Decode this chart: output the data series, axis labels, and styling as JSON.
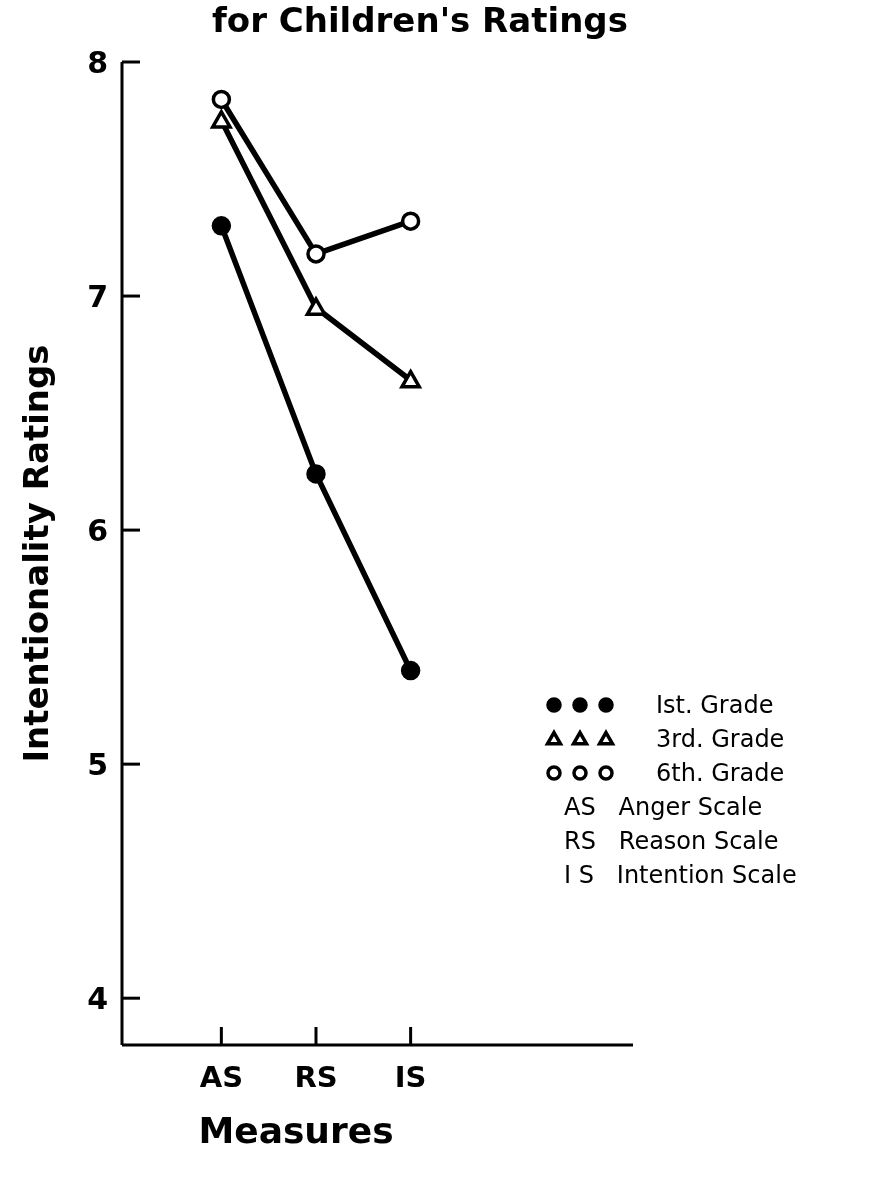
{
  "chart_data": {
    "type": "line",
    "title": "for Children's Ratings",
    "xlabel": "Measures",
    "ylabel": "Intentionality Ratings",
    "categories": [
      "AS",
      "RS",
      "IS"
    ],
    "series": [
      {
        "name": "Ist.  Grade",
        "color": "#000000",
        "marker": "circle",
        "values": [
          7.3,
          6.24,
          5.4
        ]
      },
      {
        "name": "3rd.  Grade",
        "color": "#000000",
        "marker": "triangle",
        "values": [
          7.75,
          6.95,
          6.64
        ]
      },
      {
        "name": "6th.  Grade",
        "color": "#000000",
        "marker": "circle",
        "values": [
          7.84,
          7.18,
          7.32
        ]
      }
    ],
    "ylim": [
      3.8,
      8
    ],
    "yticks": [
      4,
      5,
      6,
      7,
      8
    ],
    "legend": "right",
    "grid": false,
    "line_style": "solid",
    "annotations": [
      "AS   Anger Scale",
      "RS   Reason Scale",
      "I S   Intention Scale"
    ]
  }
}
